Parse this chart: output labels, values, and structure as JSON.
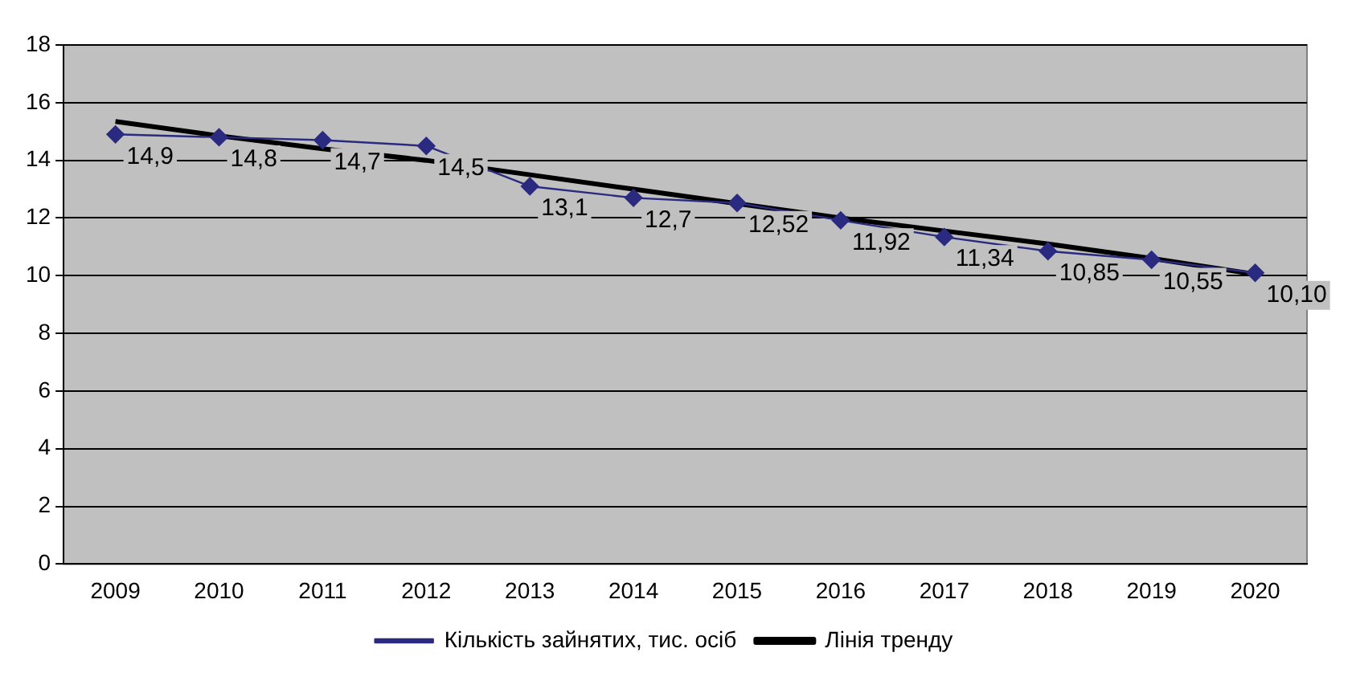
{
  "chart_data": {
    "type": "line",
    "categories": [
      "2009",
      "2010",
      "2011",
      "2012",
      "2013",
      "2014",
      "2015",
      "2016",
      "2017",
      "2018",
      "2019",
      "2020"
    ],
    "series": [
      {
        "name": "Кількість зайнятих, тис. осіб",
        "color": "#2a2a80",
        "marker": "diamond",
        "values": [
          14.9,
          14.8,
          14.7,
          14.5,
          13.1,
          12.7,
          12.52,
          11.92,
          11.34,
          10.85,
          10.55,
          10.1
        ],
        "value_labels": [
          "14,9",
          "14,8",
          "14,7",
          "14,5",
          "13,1",
          "12,7",
          "12,52",
          "11,92",
          "11,34",
          "10,85",
          "10,55",
          "10,10"
        ]
      },
      {
        "name": "Лінія тренду",
        "color": "#000000",
        "marker": "none",
        "values": [
          15.35,
          14.85,
          14.4,
          14.0,
          13.5,
          13.0,
          12.5,
          12.0,
          11.55,
          11.1,
          10.6,
          10.05
        ]
      }
    ],
    "ylim": [
      0,
      18
    ],
    "yticks": [
      0,
      2,
      4,
      6,
      8,
      10,
      12,
      14,
      16,
      18
    ],
    "grid": "y",
    "legend": "bottom"
  }
}
